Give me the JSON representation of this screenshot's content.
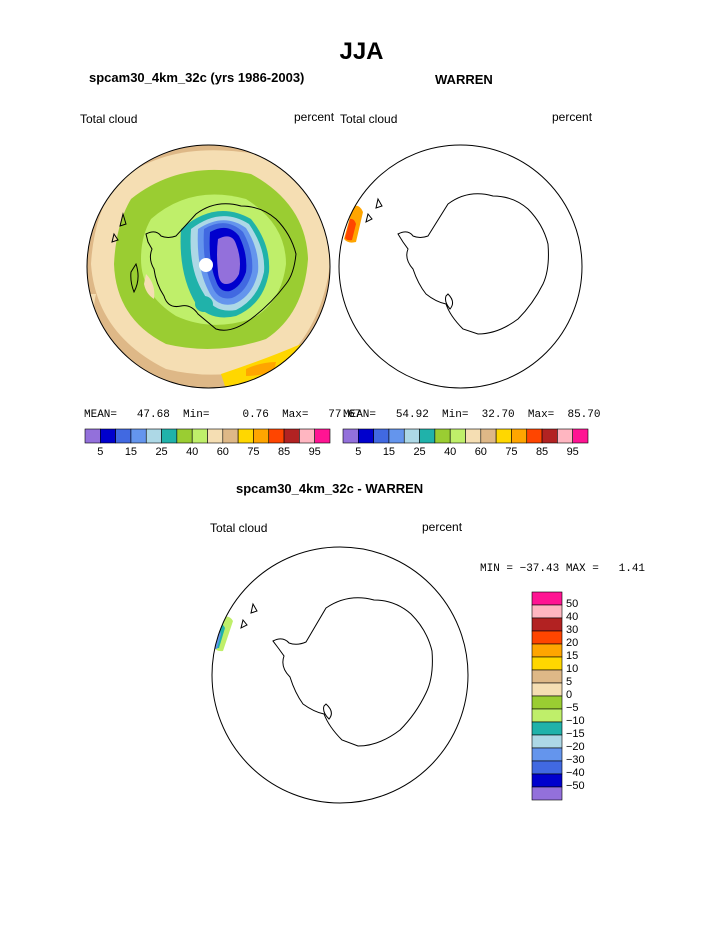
{
  "header": {
    "title": "JJA"
  },
  "panels": {
    "left": {
      "title": "spcam30_4km_32c (yrs 1986-2003)",
      "left_label": "Total cloud",
      "right_label": "percent",
      "stats": {
        "mean_label": "MEAN=",
        "mean": "47.68",
        "min_label": "Min=",
        "min": "0.76",
        "max_label": "Max=",
        "max": "77.67"
      }
    },
    "right": {
      "title": "WARREN",
      "left_label": "Total cloud",
      "right_label": "percent",
      "stats": {
        "mean_label": "MEAN=",
        "mean": "54.92",
        "min_label": "Min=",
        "min": "32.70",
        "max_label": "Max=",
        "max": "85.70"
      }
    },
    "diff": {
      "title": "spcam30_4km_32c - WARREN",
      "left_label": "Total cloud",
      "right_label": "percent",
      "stats": "MIN = −37.43 MAX =   1.41"
    }
  },
  "colorbar_top": {
    "colors": [
      "#9370db",
      "#0000cd",
      "#4169e1",
      "#6495ed",
      "#add8e6",
      "#20b2aa",
      "#9acd32",
      "#bfef6a",
      "#f5deb3",
      "#deb887",
      "#ffd700",
      "#ffa500",
      "#ff4500",
      "#b22222",
      "#ffb6c1",
      "#ff1493"
    ],
    "tick_labels": [
      "5",
      "15",
      "25",
      "40",
      "60",
      "75",
      "85",
      "95"
    ]
  },
  "colorbar_diff": {
    "colors": [
      "#9370db",
      "#0000cd",
      "#4169e1",
      "#6495ed",
      "#add8e6",
      "#20b2aa",
      "#bfef6a",
      "#9acd32",
      "#f5deb3",
      "#deb887",
      "#ffd700",
      "#ffa500",
      "#ff4500",
      "#b22222",
      "#ffb6c1",
      "#ff1493"
    ],
    "tick_labels": [
      "50",
      "40",
      "30",
      "20",
      "15",
      "10",
      "5",
      "0",
      "−5",
      "−10",
      "−15",
      "−20",
      "−30",
      "−40",
      "−50"
    ]
  },
  "map_colors": {
    "tan": "#deb887",
    "wheat": "#f5deb3",
    "green": "#9acd32",
    "light_green": "#bfef6a",
    "teal": "#20b2aa",
    "light_blue": "#add8e6",
    "cornflower": "#6495ed",
    "royal_blue": "#4169e1",
    "dark_blue": "#0000cd",
    "purple": "#9370db",
    "yellow": "#ffd700",
    "orange": "#ffa500",
    "red_orange": "#ff4500"
  }
}
